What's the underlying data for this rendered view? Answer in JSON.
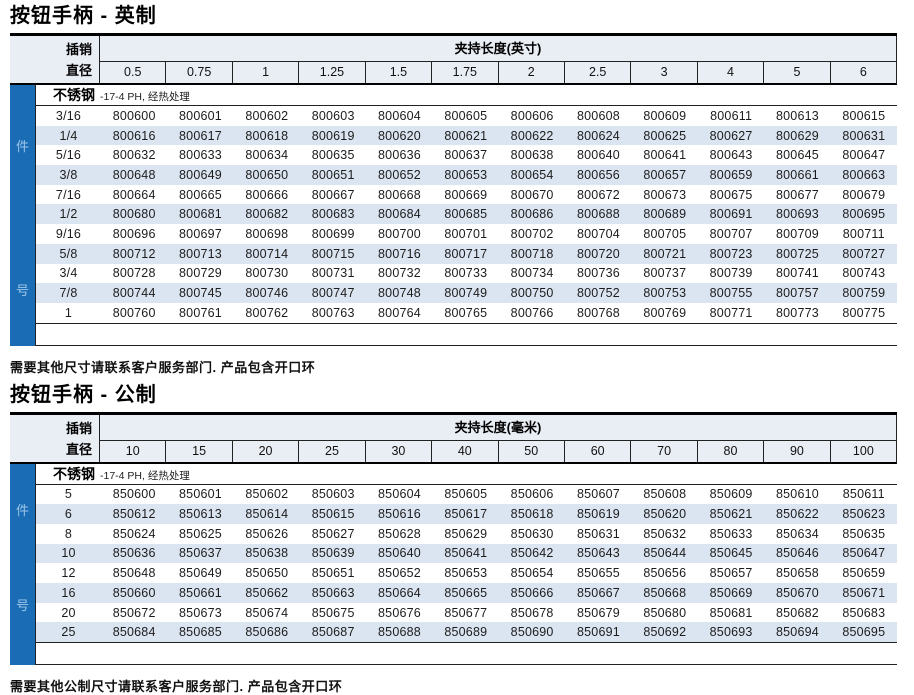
{
  "colors": {
    "accent_blue": "#1a6cb5",
    "row_stripe": "#dbe5f1",
    "header_bg": "#e9edf4",
    "side_label_text": "#9cc6e9"
  },
  "tables": [
    {
      "title": "按钮手柄 - 英制",
      "pin_label_line1": "插销",
      "pin_label_line2": "直径",
      "span_label": "夹持长度(英寸)",
      "columns": [
        "0.5",
        "0.75",
        "1",
        "1.25",
        "1.5",
        "1.75",
        "2",
        "2.5",
        "3",
        "4",
        "5",
        "6"
      ],
      "material": "不锈钢",
      "material_note": "-17-4 PH, 经热处理",
      "side_label_top": "件",
      "side_label_bottom": "号",
      "rows": [
        {
          "size": "3/16",
          "parts": [
            "800600",
            "800601",
            "800602",
            "800603",
            "800604",
            "800605",
            "800606",
            "800608",
            "800609",
            "800611",
            "800613",
            "800615"
          ]
        },
        {
          "size": "1/4",
          "parts": [
            "800616",
            "800617",
            "800618",
            "800619",
            "800620",
            "800621",
            "800622",
            "800624",
            "800625",
            "800627",
            "800629",
            "800631"
          ]
        },
        {
          "size": "5/16",
          "parts": [
            "800632",
            "800633",
            "800634",
            "800635",
            "800636",
            "800637",
            "800638",
            "800640",
            "800641",
            "800643",
            "800645",
            "800647"
          ]
        },
        {
          "size": "3/8",
          "parts": [
            "800648",
            "800649",
            "800650",
            "800651",
            "800652",
            "800653",
            "800654",
            "800656",
            "800657",
            "800659",
            "800661",
            "800663"
          ]
        },
        {
          "size": "7/16",
          "parts": [
            "800664",
            "800665",
            "800666",
            "800667",
            "800668",
            "800669",
            "800670",
            "800672",
            "800673",
            "800675",
            "800677",
            "800679"
          ]
        },
        {
          "size": "1/2",
          "parts": [
            "800680",
            "800681",
            "800682",
            "800683",
            "800684",
            "800685",
            "800686",
            "800688",
            "800689",
            "800691",
            "800693",
            "800695"
          ]
        },
        {
          "size": "9/16",
          "parts": [
            "800696",
            "800697",
            "800698",
            "800699",
            "800700",
            "800701",
            "800702",
            "800704",
            "800705",
            "800707",
            "800709",
            "800711"
          ]
        },
        {
          "size": "5/8",
          "parts": [
            "800712",
            "800713",
            "800714",
            "800715",
            "800716",
            "800717",
            "800718",
            "800720",
            "800721",
            "800723",
            "800725",
            "800727"
          ]
        },
        {
          "size": "3/4",
          "parts": [
            "800728",
            "800729",
            "800730",
            "800731",
            "800732",
            "800733",
            "800734",
            "800736",
            "800737",
            "800739",
            "800741",
            "800743"
          ]
        },
        {
          "size": "7/8",
          "parts": [
            "800744",
            "800745",
            "800746",
            "800747",
            "800748",
            "800749",
            "800750",
            "800752",
            "800753",
            "800755",
            "800757",
            "800759"
          ]
        },
        {
          "size": "1",
          "parts": [
            "800760",
            "800761",
            "800762",
            "800763",
            "800764",
            "800765",
            "800766",
            "800768",
            "800769",
            "800771",
            "800773",
            "800775"
          ]
        }
      ],
      "footnote": "需要其他尺寸请联系客户服务部门.  产品包含开口环"
    },
    {
      "title": "按钮手柄 - 公制",
      "pin_label_line1": "插销",
      "pin_label_line2": "直径",
      "span_label": "夹持长度(毫米)",
      "columns": [
        "10",
        "15",
        "20",
        "25",
        "30",
        "40",
        "50",
        "60",
        "70",
        "80",
        "90",
        "100"
      ],
      "material": "不锈钢",
      "material_note": "-17-4 PH, 经热处理",
      "side_label_top": "件",
      "side_label_bottom": "号",
      "rows": [
        {
          "size": "5",
          "parts": [
            "850600",
            "850601",
            "850602",
            "850603",
            "850604",
            "850605",
            "850606",
            "850607",
            "850608",
            "850609",
            "850610",
            "850611"
          ]
        },
        {
          "size": "6",
          "parts": [
            "850612",
            "850613",
            "850614",
            "850615",
            "850616",
            "850617",
            "850618",
            "850619",
            "850620",
            "850621",
            "850622",
            "850623"
          ]
        },
        {
          "size": "8",
          "parts": [
            "850624",
            "850625",
            "850626",
            "850627",
            "850628",
            "850629",
            "850630",
            "850631",
            "850632",
            "850633",
            "850634",
            "850635"
          ]
        },
        {
          "size": "10",
          "parts": [
            "850636",
            "850637",
            "850638",
            "850639",
            "850640",
            "850641",
            "850642",
            "850643",
            "850644",
            "850645",
            "850646",
            "850647"
          ]
        },
        {
          "size": "12",
          "parts": [
            "850648",
            "850649",
            "850650",
            "850651",
            "850652",
            "850653",
            "850654",
            "850655",
            "850656",
            "850657",
            "850658",
            "850659"
          ]
        },
        {
          "size": "16",
          "parts": [
            "850660",
            "850661",
            "850662",
            "850663",
            "850664",
            "850665",
            "850666",
            "850667",
            "850668",
            "850669",
            "850670",
            "850671"
          ]
        },
        {
          "size": "20",
          "parts": [
            "850672",
            "850673",
            "850674",
            "850675",
            "850676",
            "850677",
            "850678",
            "850679",
            "850680",
            "850681",
            "850682",
            "850683"
          ]
        },
        {
          "size": "25",
          "parts": [
            "850684",
            "850685",
            "850686",
            "850687",
            "850688",
            "850689",
            "850690",
            "850691",
            "850692",
            "850693",
            "850694",
            "850695"
          ]
        }
      ],
      "footnote": "需要其他公制尺寸请联系客户服务部门.  产品包含开口环"
    }
  ]
}
